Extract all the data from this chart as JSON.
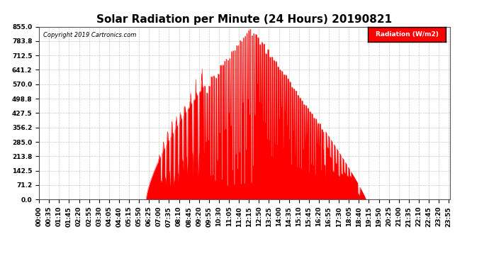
{
  "title": "Solar Radiation per Minute (24 Hours) 20190821",
  "copyright_text": "Copyright 2019 Cartronics.com",
  "legend_label": "Radiation (W/m2)",
  "ylabel_values": [
    0.0,
    71.2,
    142.5,
    213.8,
    285.0,
    356.2,
    427.5,
    498.8,
    570.0,
    641.2,
    712.5,
    783.8,
    855.0
  ],
  "ymax": 855.0,
  "ymin": 0.0,
  "fill_color": "#FF0000",
  "line_color": "#FF0000",
  "background_color": "#FFFFFF",
  "grid_color": "#AAAAAA",
  "title_fontsize": 11,
  "tick_fontsize": 6.5,
  "legend_bg": "#FF0000",
  "legend_text_color": "#FFFFFF",
  "sunrise_minute": 375,
  "sunset_minute": 1145,
  "peak_minute": 745,
  "peak_value": 855.0
}
